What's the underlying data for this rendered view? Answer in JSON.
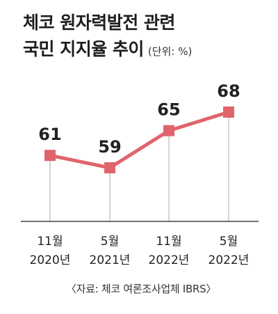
{
  "title_lines": [
    "체코 원자력발전 관련",
    "국민 지지율 추이"
  ],
  "unit_label": "(단위: %)",
  "source": "〈자료: 체코 여론조사업체 IBRS〉",
  "colors": {
    "line": "#e0646c",
    "marker": "#e0646c",
    "guide": "#aaaaaa",
    "axis": "#444444",
    "text": "#222222"
  },
  "chart_data": {
    "type": "line",
    "title": "체코 원자력발전 관련 국민 지지율 추이",
    "unit": "(단위: %)",
    "categories": [
      {
        "month": "11월",
        "year": "2020년"
      },
      {
        "month": "5월",
        "year": "2021년"
      },
      {
        "month": "11월",
        "year": "2022년"
      },
      {
        "month": "5월",
        "year": "2022년"
      }
    ],
    "values": [
      61,
      59,
      65,
      68
    ],
    "value_labels": [
      "61",
      "59",
      "65",
      "68"
    ],
    "ylim": [
      50,
      70
    ],
    "grid": false,
    "legend": "none"
  }
}
